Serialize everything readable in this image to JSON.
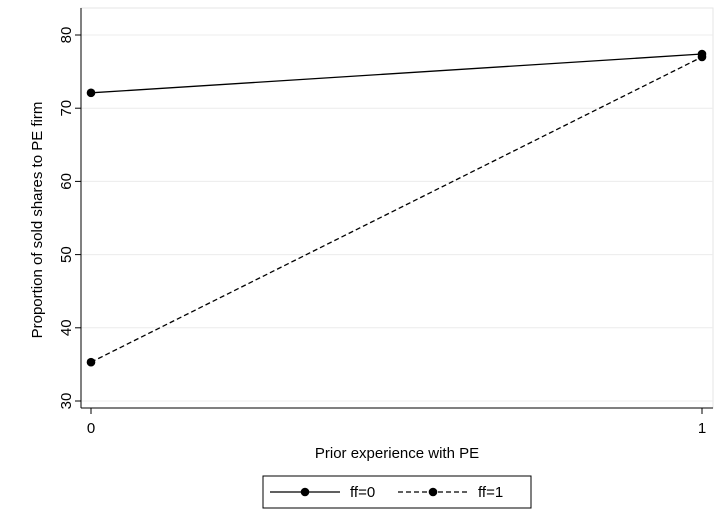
{
  "chart_data": {
    "type": "line",
    "title": "",
    "xlabel": "Prior experience with PE",
    "ylabel": "Proportion of sold shares to PE firm",
    "x": [
      0,
      1
    ],
    "x_ticks": [
      "0",
      "1"
    ],
    "y_ticks": [
      "30",
      "40",
      "50",
      "60",
      "70",
      "80"
    ],
    "xlim": [
      0,
      1
    ],
    "ylim": [
      30,
      80
    ],
    "grid": "horizontal",
    "legend_position": "bottom",
    "series": [
      {
        "name": "ff=0",
        "values": [
          72.1,
          77.4
        ],
        "line_style": "solid",
        "color": "#000000"
      },
      {
        "name": "ff=1",
        "values": [
          35.3,
          77.0
        ],
        "line_style": "dashed",
        "color": "#000000"
      }
    ]
  }
}
